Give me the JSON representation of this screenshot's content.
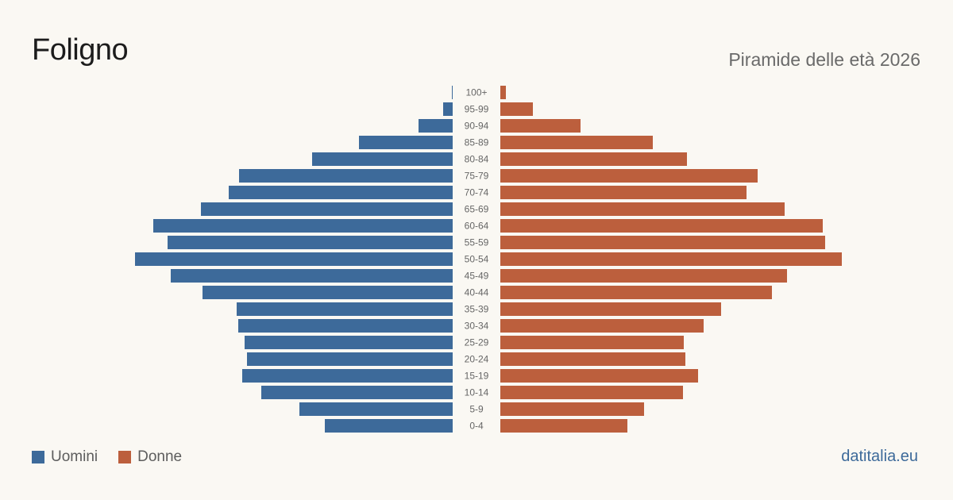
{
  "header": {
    "title": "Foligno",
    "subtitle": "Piramide delle età 2026"
  },
  "legend": {
    "male_label": "Uomini",
    "female_label": "Donne"
  },
  "source": "datitalia.eu",
  "colors": {
    "male": "#3d6a9a",
    "female": "#bc5f3d",
    "background": "#faf8f3",
    "label": "#666666"
  },
  "chart_data": {
    "type": "bar",
    "orientation": "horizontal-pyramid",
    "categories": [
      "100+",
      "95-99",
      "90-94",
      "85-89",
      "80-84",
      "75-79",
      "70-74",
      "65-69",
      "60-64",
      "55-59",
      "50-54",
      "45-49",
      "40-44",
      "35-39",
      "30-34",
      "25-29",
      "20-24",
      "15-19",
      "10-14",
      "5-9",
      "0-4"
    ],
    "series": [
      {
        "name": "Uomini",
        "values": [
          1,
          12,
          43,
          118,
          177,
          269,
          282,
          317,
          377,
          359,
          400,
          355,
          315,
          272,
          270,
          262,
          259,
          265,
          241,
          193,
          161
        ]
      },
      {
        "name": "Donne",
        "values": [
          7,
          41,
          101,
          192,
          235,
          324,
          310,
          358,
          406,
          409,
          430,
          361,
          342,
          278,
          256,
          231,
          233,
          249,
          230,
          181,
          160
        ]
      }
    ],
    "xlim": [
      0,
      430
    ]
  }
}
